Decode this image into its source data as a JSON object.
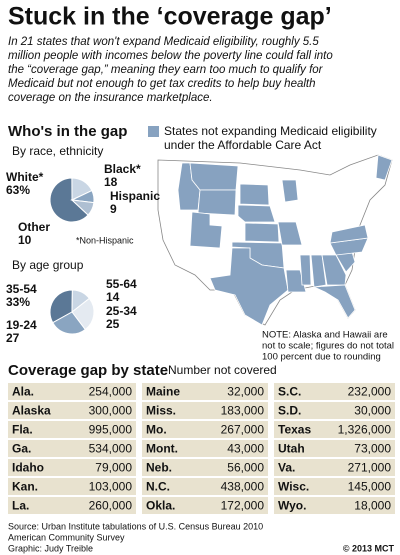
{
  "title": "Stuck in the ‘coverage gap’",
  "intro": [
    "In 21 states that won't expand Medicaid eligibility, roughly 5.5",
    "million people with incomes below the poverty line could fall into",
    "the “coverage gap,” meaning they earn too much to qualify for",
    "Medicaid but not enough to get tax credits to help buy health",
    "coverage on the insurance marketplace."
  ],
  "section": "Who's in the gap",
  "chart_data": [
    {
      "type": "pie",
      "title": "By race, ethnicity",
      "categories": [
        "White*",
        "Black*",
        "Hispanic",
        "Other"
      ],
      "values": [
        63,
        18,
        9,
        10
      ],
      "value_labels": [
        "63%",
        "18",
        "9",
        "10"
      ],
      "colors": [
        "#5b7896",
        "#c9d6e4",
        "#8aa5c1",
        "#aebfd2"
      ],
      "note": "*Non-Hispanic"
    },
    {
      "type": "pie",
      "title": "By age group",
      "categories": [
        "35-54",
        "55-64",
        "25-34",
        "19-24"
      ],
      "values": [
        33,
        14,
        25,
        27
      ],
      "value_labels": [
        "33%",
        "14",
        "25",
        "27"
      ],
      "colors": [
        "#5b7896",
        "#c9d6e4",
        "#e4eaf1",
        "#8aa5c1"
      ]
    }
  ],
  "map": {
    "legend": [
      "States not expanding Medicaid eligibility",
      "under the Affordable Care Act"
    ],
    "color": "#87a2c0",
    "note": [
      "NOTE: Alaska and Hawaii are",
      "not to scale; figures do not total",
      "100 percent due to rounding"
    ]
  },
  "table": {
    "title": "Coverage gap by state",
    "subtitle": "Number not covered",
    "columns": [
      [
        [
          "Ala.",
          "254,000"
        ],
        [
          "Alaska",
          "300,000"
        ],
        [
          "Fla.",
          "995,000"
        ],
        [
          "Ga.",
          "534,000"
        ],
        [
          "Idaho",
          "79,000"
        ],
        [
          "Kan.",
          "103,000"
        ],
        [
          "La.",
          "260,000"
        ]
      ],
      [
        [
          "Maine",
          "32,000"
        ],
        [
          "Miss.",
          "183,000"
        ],
        [
          "Mo.",
          "267,000"
        ],
        [
          "Mont.",
          "43,000"
        ],
        [
          "Neb.",
          "56,000"
        ],
        [
          "N.C.",
          "438,000"
        ],
        [
          "Okla.",
          "172,000"
        ]
      ],
      [
        [
          "S.C.",
          "232,000"
        ],
        [
          "S.D.",
          "30,000"
        ],
        [
          "Texas",
          "1,326,000"
        ],
        [
          "Utah",
          "73,000"
        ],
        [
          "Va.",
          "271,000"
        ],
        [
          "Wisc.",
          "145,000"
        ],
        [
          "Wyo.",
          "18,000"
        ]
      ]
    ]
  },
  "footer": {
    "source": [
      "Source: Urban Institute tabulations of U.S. Census Bureau 2010",
      "American Community Survey",
      "Graphic: Judy Treible"
    ],
    "credit": "© 2013 MCT"
  }
}
